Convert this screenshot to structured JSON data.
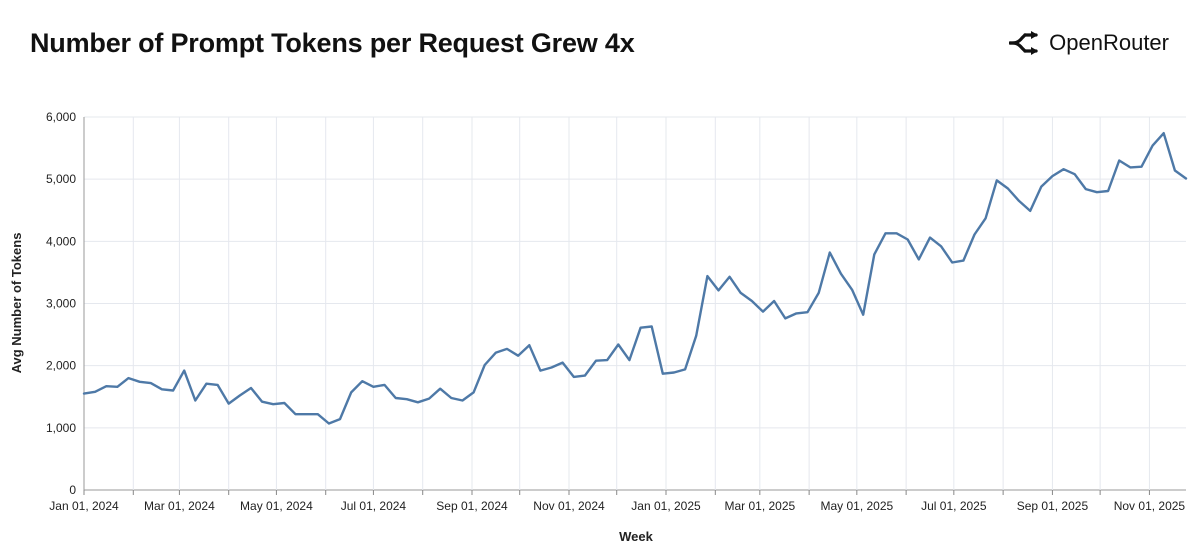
{
  "header": {
    "title": "Number of Prompt Tokens per Request Grew 4x",
    "brand_name": "OpenRouter",
    "brand_icon": "openrouter-logo-icon"
  },
  "chart_data": {
    "type": "line",
    "title": "Number of Prompt Tokens per Request Grew 4x",
    "xlabel": "Week",
    "ylabel": "Avg Number of Tokens",
    "ylim": [
      0,
      6000
    ],
    "yticks": [
      0,
      1000,
      2000,
      3000,
      4000,
      5000,
      6000
    ],
    "ytick_labels": [
      "0",
      "1,000",
      "2,000",
      "3,000",
      "4,000",
      "5,000",
      "6,000"
    ],
    "xlim": [
      "2024-01-01",
      "2025-11-24"
    ],
    "xticks": [
      "2024-01-01",
      "2024-03-01",
      "2024-05-01",
      "2024-07-01",
      "2024-09-01",
      "2024-11-01",
      "2025-01-01",
      "2025-03-01",
      "2025-05-01",
      "2025-07-01",
      "2025-09-01",
      "2025-11-01"
    ],
    "xtick_labels": [
      "Jan 01, 2024",
      "Mar 01, 2024",
      "May 01, 2024",
      "Jul 01, 2024",
      "Sep 01, 2024",
      "Nov 01, 2024",
      "Jan 01, 2025",
      "Mar 01, 2025",
      "May 01, 2025",
      "Jul 01, 2025",
      "Sep 01, 2025",
      "Nov 01, 2025"
    ],
    "grid": true,
    "line_color": "#4e79a7",
    "x": [
      "2024-01-01",
      "2024-01-08",
      "2024-01-15",
      "2024-01-22",
      "2024-01-29",
      "2024-02-05",
      "2024-02-12",
      "2024-02-19",
      "2024-02-26",
      "2024-03-04",
      "2024-03-11",
      "2024-03-18",
      "2024-03-25",
      "2024-04-01",
      "2024-04-08",
      "2024-04-15",
      "2024-04-22",
      "2024-04-29",
      "2024-05-06",
      "2024-05-13",
      "2024-05-20",
      "2024-05-27",
      "2024-06-03",
      "2024-06-10",
      "2024-06-17",
      "2024-06-24",
      "2024-07-01",
      "2024-07-08",
      "2024-07-15",
      "2024-07-22",
      "2024-07-29",
      "2024-08-05",
      "2024-08-12",
      "2024-08-19",
      "2024-08-26",
      "2024-09-02",
      "2024-09-09",
      "2024-09-16",
      "2024-09-23",
      "2024-09-30",
      "2024-10-07",
      "2024-10-14",
      "2024-10-21",
      "2024-10-28",
      "2024-11-04",
      "2024-11-11",
      "2024-11-18",
      "2024-11-25",
      "2024-12-02",
      "2024-12-09",
      "2024-12-16",
      "2024-12-23",
      "2024-12-30",
      "2025-01-06",
      "2025-01-13",
      "2025-01-20",
      "2025-01-27",
      "2025-02-03",
      "2025-02-10",
      "2025-02-17",
      "2025-02-24",
      "2025-03-03",
      "2025-03-10",
      "2025-03-17",
      "2025-03-24",
      "2025-03-31",
      "2025-04-07",
      "2025-04-14",
      "2025-04-21",
      "2025-04-28",
      "2025-05-05",
      "2025-05-12",
      "2025-05-19",
      "2025-05-26",
      "2025-06-02",
      "2025-06-09",
      "2025-06-16",
      "2025-06-23",
      "2025-06-30",
      "2025-07-07",
      "2025-07-14",
      "2025-07-21",
      "2025-07-28",
      "2025-08-04",
      "2025-08-11",
      "2025-08-18",
      "2025-08-25",
      "2025-09-01",
      "2025-09-08",
      "2025-09-15",
      "2025-09-22",
      "2025-09-29",
      "2025-10-06",
      "2025-10-13",
      "2025-10-20",
      "2025-10-27",
      "2025-11-03",
      "2025-11-10",
      "2025-11-17",
      "2025-11-24"
    ],
    "series": [
      {
        "values": [
          1550,
          1580,
          1670,
          1660,
          1800,
          1740,
          1720,
          1620,
          1600,
          1920,
          1440,
          1710,
          1690,
          1390,
          1520,
          1640,
          1420,
          1380,
          1400,
          1220,
          1220,
          1220,
          1070,
          1140,
          1570,
          1750,
          1660,
          1690,
          1480,
          1460,
          1410,
          1470,
          1630,
          1480,
          1440,
          1570,
          2010,
          2210,
          2270,
          2160,
          2330,
          1920,
          1970,
          2050,
          1820,
          1840,
          2080,
          2090,
          2340,
          2090,
          2610,
          2630,
          1870,
          1890,
          1940,
          2480,
          3440,
          3210,
          3430,
          3170,
          3040,
          2870,
          3040,
          2760,
          2840,
          2860,
          3170,
          3820,
          3480,
          3220,
          2820,
          3790,
          4130,
          4130,
          4030,
          3710,
          4060,
          3920,
          3660,
          3690,
          4110,
          4370,
          4980,
          4850,
          4650,
          4490,
          4880,
          5050,
          5160,
          5080,
          4840,
          4790,
          4810,
          5300,
          5190,
          5200,
          5540,
          5740,
          5140,
          5010
        ]
      }
    ]
  }
}
